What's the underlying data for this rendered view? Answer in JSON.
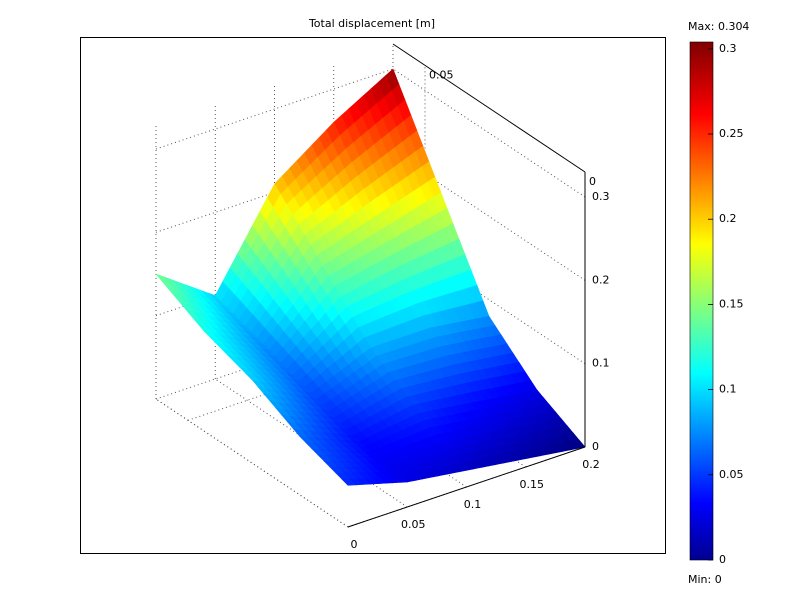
{
  "chart_data": {
    "type": "surface",
    "title": "Total displacement [m]",
    "x": [
      0,
      0.05,
      0.1,
      0.15,
      0.2
    ],
    "y": [
      0,
      0.015,
      0.03,
      0.045,
      0.06
    ],
    "z": [
      [
        0.05,
        0.03,
        0.02,
        0.01,
        0.0
      ],
      [
        0.07,
        0.04,
        0.05,
        0.04,
        0.03
      ],
      [
        0.1,
        0.06,
        0.09,
        0.09,
        0.08
      ],
      [
        0.12,
        0.08,
        0.15,
        0.17,
        0.19
      ],
      [
        0.15,
        0.1,
        0.21,
        0.26,
        0.3
      ]
    ],
    "xlim": [
      0,
      0.2
    ],
    "ylim": [
      0,
      0.06
    ],
    "zlim": [
      0,
      0.33
    ],
    "xticks": [
      0,
      0.05,
      0.1,
      0.15,
      0.2
    ],
    "yticks": [
      0,
      0.05
    ],
    "zticks": [
      0,
      0.1,
      0.2,
      0.3
    ],
    "grid": true,
    "colorbar": {
      "clim": [
        0,
        0.304
      ],
      "ticks": [
        0,
        0.05,
        0.1,
        0.15,
        0.2,
        0.25,
        0.3
      ],
      "max_label": "Max: 0.304",
      "min_label": "Min: 0"
    }
  }
}
